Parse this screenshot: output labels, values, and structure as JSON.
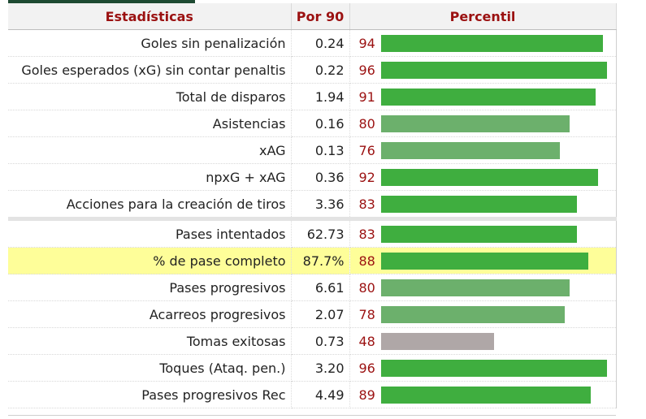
{
  "header": {
    "stat_label": "Estadísticas",
    "per90_label": "Por 90",
    "pct_label": "Percentil"
  },
  "colors": {
    "bar_high": "#3fae3f",
    "bar_mid": "#6cb06c",
    "bar_low": "#afa7a7",
    "highlight": "#fefe99",
    "header_text": "#9b1111"
  },
  "rows": [
    {
      "stat": "Goles sin penalización",
      "per90": "0.24",
      "percentile": 94,
      "tier": "high"
    },
    {
      "stat": "Goles esperados (xG) sin contar penaltis",
      "per90": "0.22",
      "percentile": 96,
      "tier": "high"
    },
    {
      "stat": "Total de disparos",
      "per90": "1.94",
      "percentile": 91,
      "tier": "high"
    },
    {
      "stat": "Asistencias",
      "per90": "0.16",
      "percentile": 80,
      "tier": "mid"
    },
    {
      "stat": "xAG",
      "per90": "0.13",
      "percentile": 76,
      "tier": "mid"
    },
    {
      "stat": "npxG + xAG",
      "per90": "0.36",
      "percentile": 92,
      "tier": "high"
    },
    {
      "stat": "Acciones para la creación de tiros",
      "per90": "3.36",
      "percentile": 83,
      "tier": "high"
    },
    {
      "stat": "Pases intentados",
      "per90": "62.73",
      "percentile": 83,
      "tier": "high"
    },
    {
      "stat": "% de pase completo",
      "per90": "87.7%",
      "percentile": 88,
      "tier": "high",
      "highlight": true
    },
    {
      "stat": "Pases progresivos",
      "per90": "6.61",
      "percentile": 80,
      "tier": "mid"
    },
    {
      "stat": "Acarreos progresivos",
      "per90": "2.07",
      "percentile": 78,
      "tier": "mid"
    },
    {
      "stat": "Tomas exitosas",
      "per90": "0.73",
      "percentile": 48,
      "tier": "low"
    },
    {
      "stat": "Toques (Ataq. pen.)",
      "per90": "3.20",
      "percentile": 96,
      "tier": "high"
    },
    {
      "stat": "Pases progresivos Rec",
      "per90": "4.49",
      "percentile": 89,
      "tier": "high"
    }
  ]
}
